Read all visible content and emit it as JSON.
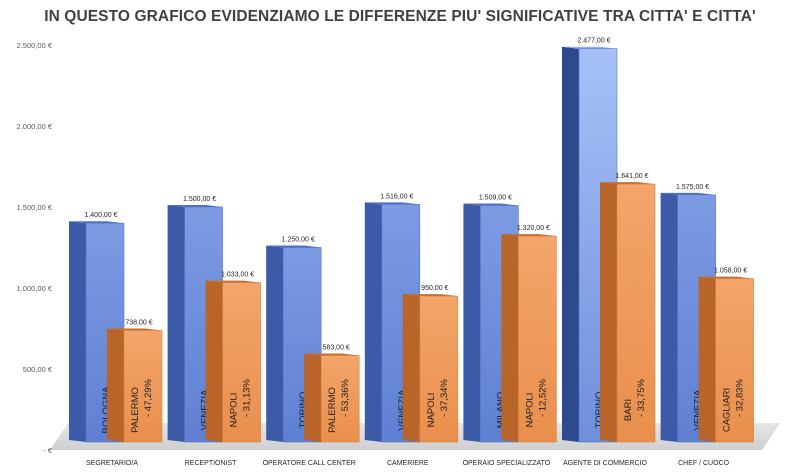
{
  "chart_data": {
    "type": "bar",
    "title": "IN QUESTO GRAFICO EVIDENZIAMO LE DIFFERENZE PIU' SIGNIFICATIVE TRA CITTA' E CITTA'",
    "xlabel": "",
    "ylabel": "",
    "ylim": [
      0,
      2500
    ],
    "y_ticks": [
      0,
      500,
      1000,
      1500,
      2000,
      2500
    ],
    "y_tick_labels": [
      "- €",
      "500,00 €",
      "1.000,00 €",
      "1.500,00 €",
      "2.000,00 €",
      "2.500,00 €"
    ],
    "grid": false,
    "categories": [
      "SEGRETARIO/A",
      "RECEPTIONIST",
      "OPERATORE CALL CENTER",
      "CAMERIERE",
      "OPERAIO SPECIALIZZATO",
      "AGENTE DI COMMERCIO",
      "CHEF / CUOCO"
    ],
    "series": [
      {
        "color": "#6f8fdb",
        "values": [
          1400,
          1500,
          1250,
          1516,
          1509,
          2477,
          1575
        ],
        "value_labels": [
          "1.400,00 €",
          "1.500,00 €",
          "1.250,00 €",
          "1.516,00 €",
          "1.509,00 €",
          "2.477,00 €",
          "1.575,00 €"
        ],
        "bar_labels": [
          "BOLOGNA",
          "VENEZIA",
          "TORINO",
          "VENEZIA",
          "MILANO",
          "TORINO",
          "VENEZIA"
        ]
      },
      {
        "color": "#ee9a5c",
        "values": [
          738,
          1033,
          583,
          950,
          1320,
          1641,
          1058
        ],
        "value_labels": [
          "738,00 €",
          "1.033,00 €",
          "583,00 €",
          "950,00 €",
          "1.320,00 €",
          "1.641,00 €",
          "1.058,00 €"
        ],
        "bar_labels": [
          "PALERMO",
          "NAPOLI",
          "PALERMO",
          "NAPOLI",
          "NAPOLI",
          "BARI",
          "CAGLIARI"
        ],
        "bar_sublabels": [
          "- 47,29%",
          "- 31,13%",
          "- 53,36%",
          "- 37,34%",
          "- 12,52%",
          "- 33,75%",
          "- 32,83%"
        ]
      }
    ]
  }
}
